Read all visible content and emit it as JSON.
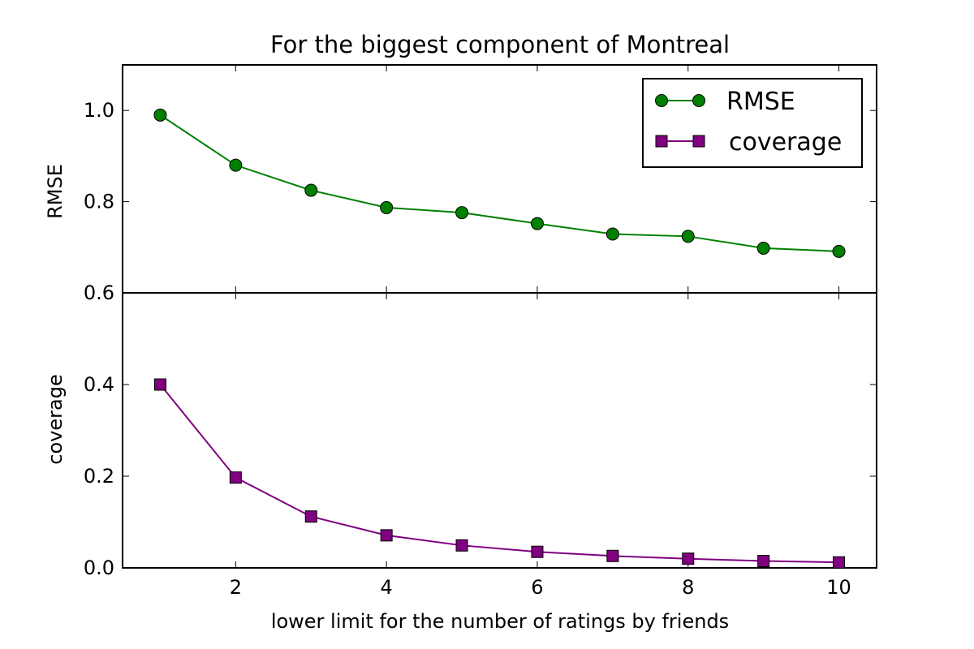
{
  "chart_data": [
    {
      "type": "line",
      "title": "For the biggest component of Montreal",
      "xlabel": "lower limit for the number of ratings by friends",
      "ylabel": "RMSE",
      "xlim": [
        0.5,
        10.5
      ],
      "ylim": [
        0.6,
        1.1
      ],
      "x_ticks": [
        2,
        4,
        6,
        8,
        10
      ],
      "y_ticks": [
        0.6,
        0.8,
        1.0
      ],
      "y_tick_labels": [
        "0.6",
        "0.8",
        "1.0"
      ],
      "legend_position": "top-right",
      "legend": [
        "RMSE",
        "coverage"
      ],
      "series": [
        {
          "name": "RMSE",
          "color": "#008000",
          "marker": "circle",
          "x": [
            1,
            2,
            3,
            4,
            5,
            6,
            7,
            8,
            9,
            10
          ],
          "y": [
            0.99,
            0.88,
            0.825,
            0.787,
            0.776,
            0.752,
            0.729,
            0.724,
            0.698,
            0.691
          ]
        }
      ]
    },
    {
      "type": "line",
      "title": "",
      "xlabel": "lower limit for the number of ratings by friends",
      "ylabel": "coverage",
      "xlim": [
        0.5,
        10.5
      ],
      "ylim": [
        0.0,
        0.6
      ],
      "x_ticks": [
        2,
        4,
        6,
        8,
        10
      ],
      "x_tick_labels": [
        "2",
        "4",
        "6",
        "8",
        "10"
      ],
      "y_ticks": [
        0.0,
        0.2,
        0.4
      ],
      "y_tick_labels": [
        "0.0",
        "0.2",
        "0.4"
      ],
      "series": [
        {
          "name": "coverage",
          "color": "#800080",
          "marker": "square",
          "x": [
            1,
            2,
            3,
            4,
            5,
            6,
            7,
            8,
            9,
            10
          ],
          "y": [
            0.4,
            0.197,
            0.112,
            0.071,
            0.049,
            0.035,
            0.026,
            0.02,
            0.015,
            0.012
          ]
        }
      ]
    }
  ]
}
